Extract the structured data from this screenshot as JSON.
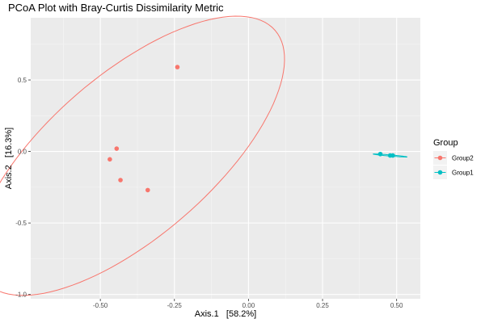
{
  "chart_data": {
    "type": "scatter",
    "title": "PCoA Plot with Bray-Curtis Dissimilarity Metric",
    "xlabel": "Axis.1   [58.2%]",
    "ylabel": "Axis.2   [16.3%]",
    "xlim": [
      -0.735,
      0.58
    ],
    "ylim": [
      -1.03,
      0.935
    ],
    "x_ticks": [
      -0.5,
      -0.25,
      0.0,
      0.25,
      0.5
    ],
    "x_tick_labels": [
      "-0.50",
      "-0.25",
      "0.00",
      "0.25",
      "0.50"
    ],
    "y_ticks": [
      -1.0,
      -0.5,
      0.0,
      0.5
    ],
    "y_tick_labels": [
      "-1.0",
      "-0.5",
      "0.0",
      "0.5"
    ],
    "grid": true,
    "legend": {
      "title": "Group",
      "placement": "right",
      "entries": [
        {
          "label": "Group2",
          "color": "#F8766D"
        },
        {
          "label": "Group1",
          "color": "#00BFC4"
        }
      ]
    },
    "series": [
      {
        "name": "Group2",
        "color": "#F8766D",
        "points": [
          {
            "x": -0.24,
            "y": 0.59
          },
          {
            "x": -0.445,
            "y": 0.02
          },
          {
            "x": -0.468,
            "y": -0.055
          },
          {
            "x": -0.432,
            "y": -0.2
          },
          {
            "x": -0.34,
            "y": -0.27
          }
        ],
        "ellipse": {
          "cx": -0.4,
          "cy": -0.03,
          "semi_major": 1.05,
          "semi_minor": 0.35,
          "angle_deg": 67
        }
      },
      {
        "name": "Group1",
        "color": "#00BFC4",
        "points": [
          {
            "x": 0.445,
            "y": -0.018
          },
          {
            "x": 0.478,
            "y": -0.028
          },
          {
            "x": 0.487,
            "y": -0.028
          }
        ],
        "ellipse": {
          "cx": 0.478,
          "cy": -0.028,
          "semi_major": 0.058,
          "semi_minor": 0.004,
          "angle_deg": -10
        }
      }
    ]
  }
}
